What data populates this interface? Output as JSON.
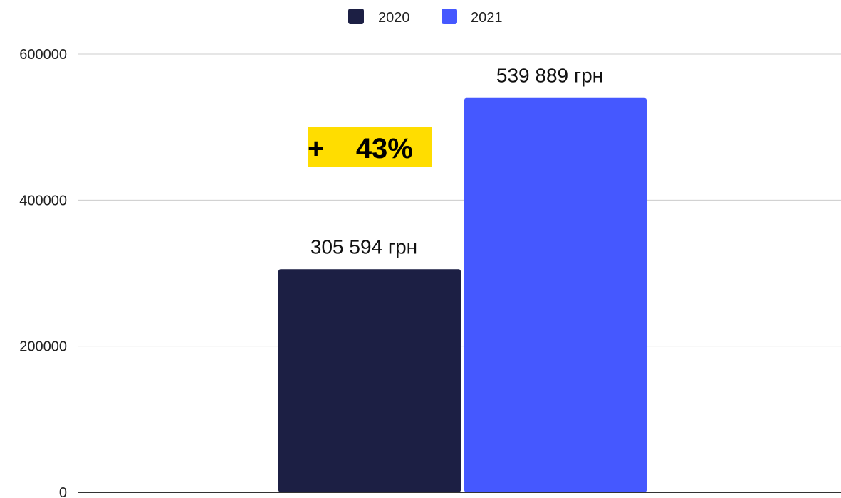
{
  "chart_data": {
    "type": "bar",
    "categories": [
      ""
    ],
    "series": [
      {
        "name": "2020",
        "values": [
          305594
        ],
        "color": "#1c1f44",
        "label": "305 594 грн"
      },
      {
        "name": "2021",
        "values": [
          539889
        ],
        "color": "#4558ff",
        "label": "539 889 грн"
      }
    ],
    "title": "",
    "xlabel": "",
    "ylabel": "",
    "ylim": [
      0,
      600000
    ],
    "yticks": [
      0,
      200000,
      400000,
      600000
    ],
    "ytick_labels": [
      "0",
      "200000",
      "400000",
      "600000"
    ],
    "grid": true,
    "legend": "top-center",
    "annotations": [
      {
        "text": "+    43%",
        "background": "#ffdd00"
      }
    ]
  }
}
